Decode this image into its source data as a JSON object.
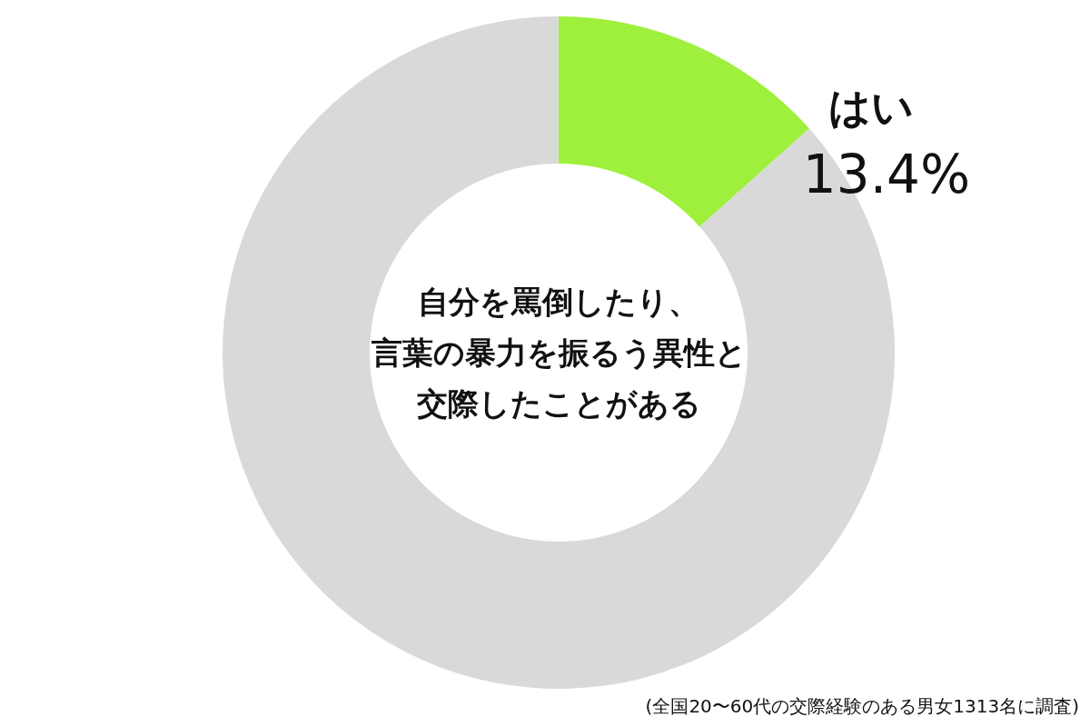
{
  "chart_data": {
    "type": "donut",
    "title": "自分を罵倒したり、言葉の暴力を振るう異性と交際したことがある",
    "categories": [
      "はい",
      null
    ],
    "values": [
      13.4,
      86.6
    ],
    "colors": [
      "#9ef03c",
      "#d9d9d9"
    ],
    "value_labels": [
      "13.4%",
      null
    ],
    "annotations": [
      "(全国20〜60代の交際経験のある男女1313名に調査)"
    ]
  }
}
